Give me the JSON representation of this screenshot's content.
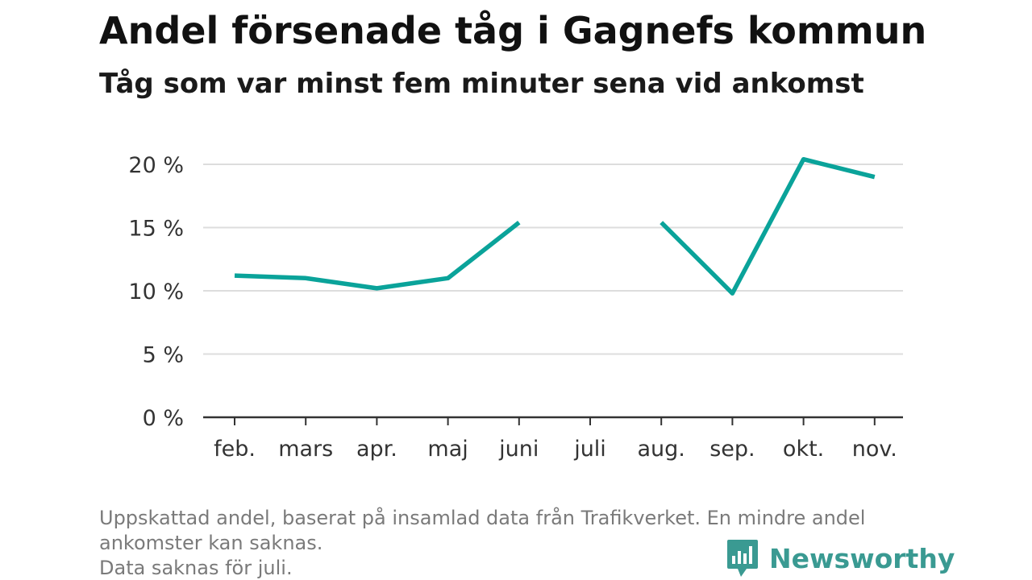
{
  "title": "Andel försenade tåg i Gagnefs kommun",
  "subtitle": "Tåg som var minst fem minuter sena vid ankomst",
  "footnote": {
    "line1": "Uppskattad andel, baserat på insamlad data från Trafikverket. En mindre andel",
    "line2": "ankomster kan saknas.",
    "line3": "Data saknas för juli."
  },
  "brand": {
    "name": "Newsworthy",
    "icon": "bar-chart-speech-bubble-icon",
    "color": "#3a9a92"
  },
  "chart_data": {
    "type": "line",
    "categories": [
      "feb.",
      "mars",
      "apr.",
      "maj",
      "juni",
      "juli",
      "aug.",
      "sep.",
      "okt.",
      "nov."
    ],
    "series": [
      {
        "values": [
          11.2,
          11.0,
          10.2,
          11.0,
          15.4,
          null,
          15.4,
          9.8,
          20.4,
          19.0
        ],
        "color": "#0aa39a"
      }
    ],
    "y_ticks": [
      0,
      5,
      10,
      15,
      20
    ],
    "y_tick_labels": [
      "0 %",
      "5 %",
      "10 %",
      "15 %",
      "20 %"
    ],
    "ylim": [
      0,
      20.5
    ],
    "grid": true,
    "legend": "none"
  }
}
